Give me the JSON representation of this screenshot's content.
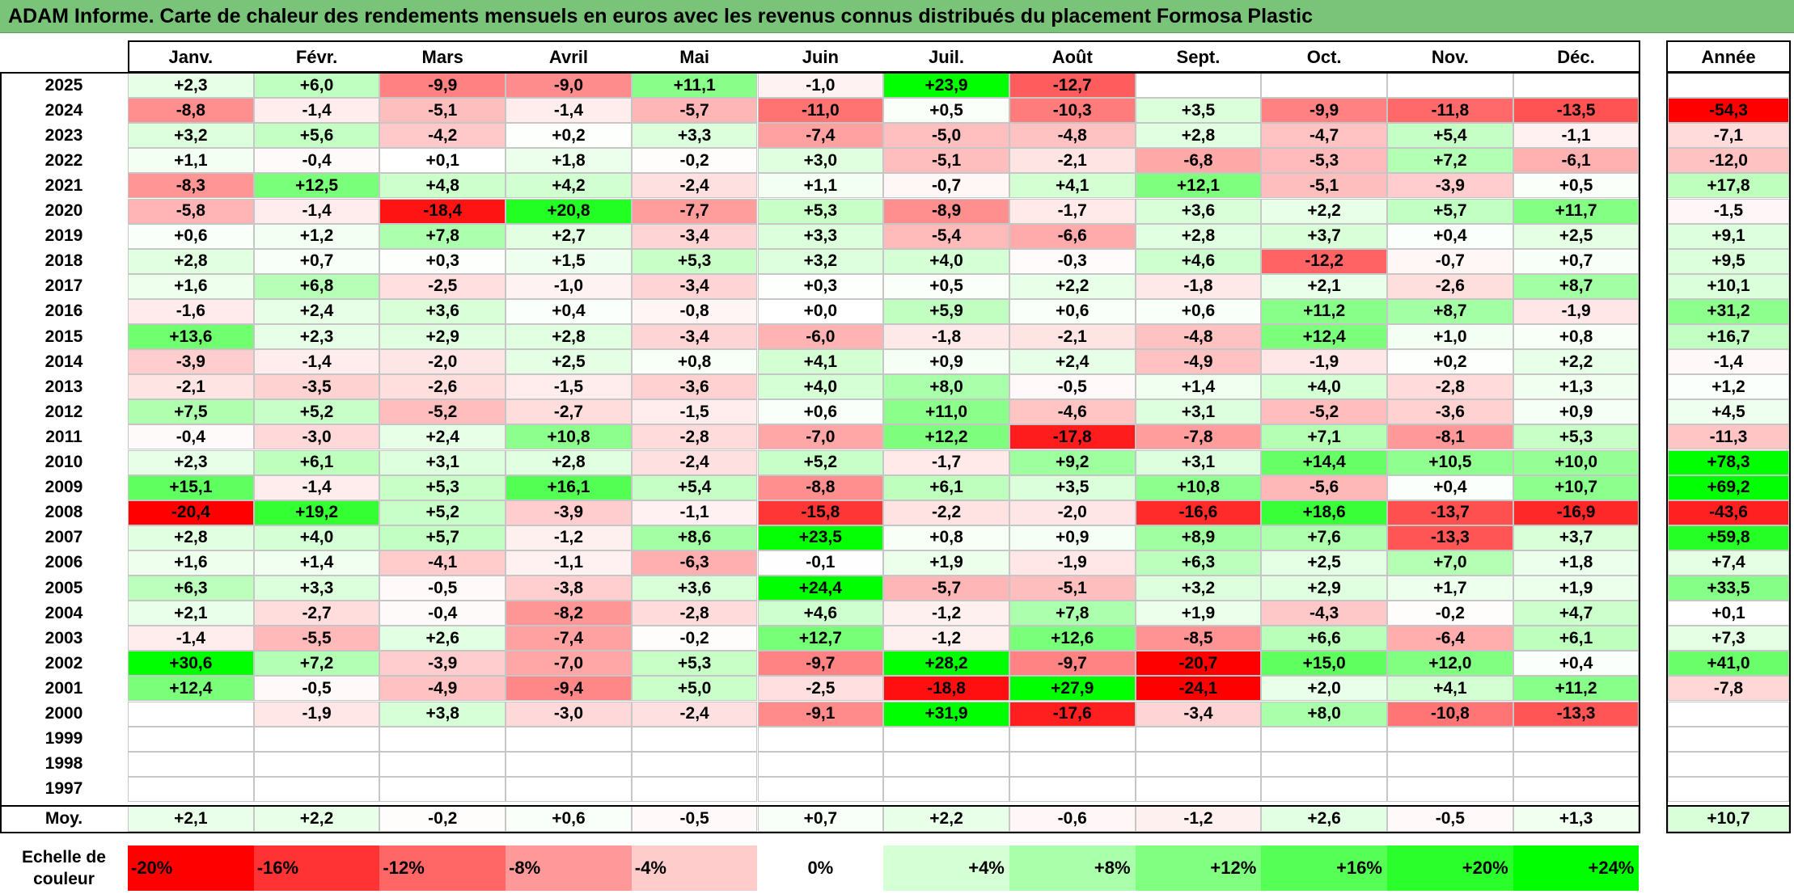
{
  "title": "ADAM Informe. Carte de chaleur des rendements mensuels en euros avec les revenus connus distribués du placement Formosa Plastic",
  "chart_data": {
    "type": "heatmap",
    "months": [
      "Janv.",
      "Févr.",
      "Mars",
      "Avril",
      "Mai",
      "Juin",
      "Juil.",
      "Août",
      "Sept.",
      "Oct.",
      "Nov.",
      "Déc."
    ],
    "annual_header": "Année",
    "rows": [
      {
        "year": "2025",
        "values": [
          "+2,3",
          "+6,0",
          "-9,9",
          "-9,0",
          "+11,1",
          "-1,0",
          "+23,9",
          "-12,7",
          "",
          "",
          "",
          ""
        ],
        "annual": ""
      },
      {
        "year": "2024",
        "values": [
          "-8,8",
          "-1,4",
          "-5,1",
          "-1,4",
          "-5,7",
          "-11,0",
          "+0,5",
          "-10,3",
          "+3,5",
          "-9,9",
          "-11,8",
          "-13,5"
        ],
        "annual": "-54,3"
      },
      {
        "year": "2023",
        "values": [
          "+3,2",
          "+5,6",
          "-4,2",
          "+0,2",
          "+3,3",
          "-7,4",
          "-5,0",
          "-4,8",
          "+2,8",
          "-4,7",
          "+5,4",
          "-1,1"
        ],
        "annual": "-7,1"
      },
      {
        "year": "2022",
        "values": [
          "+1,1",
          "-0,4",
          "+0,1",
          "+1,8",
          "-0,2",
          "+3,0",
          "-5,1",
          "-2,1",
          "-6,8",
          "-5,3",
          "+7,2",
          "-6,1"
        ],
        "annual": "-12,0"
      },
      {
        "year": "2021",
        "values": [
          "-8,3",
          "+12,5",
          "+4,8",
          "+4,2",
          "-2,4",
          "+1,1",
          "-0,7",
          "+4,1",
          "+12,1",
          "-5,1",
          "-3,9",
          "+0,5"
        ],
        "annual": "+17,8"
      },
      {
        "year": "2020",
        "values": [
          "-5,8",
          "-1,4",
          "-18,4",
          "+20,8",
          "-7,7",
          "+5,3",
          "-8,9",
          "-1,7",
          "+3,6",
          "+2,2",
          "+5,7",
          "+11,7"
        ],
        "annual": "-1,5"
      },
      {
        "year": "2019",
        "values": [
          "+0,6",
          "+1,2",
          "+7,8",
          "+2,7",
          "-3,4",
          "+3,3",
          "-5,4",
          "-6,6",
          "+2,8",
          "+3,7",
          "+0,4",
          "+2,5"
        ],
        "annual": "+9,1"
      },
      {
        "year": "2018",
        "values": [
          "+2,8",
          "+0,7",
          "+0,3",
          "+1,5",
          "+5,3",
          "+3,2",
          "+4,0",
          "-0,3",
          "+4,6",
          "-12,2",
          "-0,7",
          "+0,7"
        ],
        "annual": "+9,5"
      },
      {
        "year": "2017",
        "values": [
          "+1,6",
          "+6,8",
          "-2,5",
          "-1,0",
          "-3,4",
          "+0,3",
          "+0,5",
          "+2,2",
          "-1,8",
          "+2,1",
          "-2,6",
          "+8,7"
        ],
        "annual": "+10,1"
      },
      {
        "year": "2016",
        "values": [
          "-1,6",
          "+2,4",
          "+3,6",
          "+0,4",
          "-0,8",
          "+0,0",
          "+5,9",
          "+0,6",
          "+0,6",
          "+11,2",
          "+8,7",
          "-1,9"
        ],
        "annual": "+31,2"
      },
      {
        "year": "2015",
        "values": [
          "+13,6",
          "+2,3",
          "+2,9",
          "+2,8",
          "-3,4",
          "-6,0",
          "-1,8",
          "-2,1",
          "-4,8",
          "+12,4",
          "+1,0",
          "+0,8"
        ],
        "annual": "+16,7"
      },
      {
        "year": "2014",
        "values": [
          "-3,9",
          "-1,4",
          "-2,0",
          "+2,5",
          "+0,8",
          "+4,1",
          "+0,9",
          "+2,4",
          "-4,9",
          "-1,9",
          "+0,2",
          "+2,2"
        ],
        "annual": "-1,4"
      },
      {
        "year": "2013",
        "values": [
          "-2,1",
          "-3,5",
          "-2,6",
          "-1,5",
          "-3,6",
          "+4,0",
          "+8,0",
          "-0,5",
          "+1,4",
          "+4,0",
          "-2,8",
          "+1,3"
        ],
        "annual": "+1,2"
      },
      {
        "year": "2012",
        "values": [
          "+7,5",
          "+5,2",
          "-5,2",
          "-2,7",
          "-1,5",
          "+0,6",
          "+11,0",
          "-4,6",
          "+3,1",
          "-5,2",
          "-3,6",
          "+0,9"
        ],
        "annual": "+4,5"
      },
      {
        "year": "2011",
        "values": [
          "-0,4",
          "-3,0",
          "+2,4",
          "+10,8",
          "-2,8",
          "-7,0",
          "+12,2",
          "-17,8",
          "-7,8",
          "+7,1",
          "-8,1",
          "+5,3"
        ],
        "annual": "-11,3"
      },
      {
        "year": "2010",
        "values": [
          "+2,3",
          "+6,1",
          "+3,1",
          "+2,8",
          "-2,4",
          "+5,2",
          "-1,7",
          "+9,2",
          "+3,1",
          "+14,4",
          "+10,5",
          "+10,0"
        ],
        "annual": "+78,3"
      },
      {
        "year": "2009",
        "values": [
          "+15,1",
          "-1,4",
          "+5,3",
          "+16,1",
          "+5,4",
          "-8,8",
          "+6,1",
          "+3,5",
          "+10,8",
          "-5,6",
          "+0,4",
          "+10,7"
        ],
        "annual": "+69,2"
      },
      {
        "year": "2008",
        "values": [
          "-20,4",
          "+19,2",
          "+5,2",
          "-3,9",
          "-1,1",
          "-15,8",
          "-2,2",
          "-2,0",
          "-16,6",
          "+18,6",
          "-13,7",
          "-16,9"
        ],
        "annual": "-43,6"
      },
      {
        "year": "2007",
        "values": [
          "+2,8",
          "+4,0",
          "+5,7",
          "-1,2",
          "+8,6",
          "+23,5",
          "+0,8",
          "+0,9",
          "+8,9",
          "+7,6",
          "-13,3",
          "+3,7"
        ],
        "annual": "+59,8"
      },
      {
        "year": "2006",
        "values": [
          "+1,6",
          "+1,4",
          "-4,1",
          "-1,1",
          "-6,3",
          "-0,1",
          "+1,9",
          "-1,9",
          "+6,3",
          "+2,5",
          "+7,0",
          "+1,8"
        ],
        "annual": "+7,4"
      },
      {
        "year": "2005",
        "values": [
          "+6,3",
          "+3,3",
          "-0,5",
          "-3,8",
          "+3,6",
          "+24,4",
          "-5,7",
          "-5,1",
          "+3,2",
          "+2,9",
          "+1,7",
          "+1,9"
        ],
        "annual": "+33,5"
      },
      {
        "year": "2004",
        "values": [
          "+2,1",
          "-2,7",
          "-0,4",
          "-8,2",
          "-2,8",
          "+4,6",
          "-1,2",
          "+7,8",
          "+1,9",
          "-4,3",
          "-0,2",
          "+4,7"
        ],
        "annual": "+0,1"
      },
      {
        "year": "2003",
        "values": [
          "-1,4",
          "-5,5",
          "+2,6",
          "-7,4",
          "-0,2",
          "+12,7",
          "-1,2",
          "+12,6",
          "-8,5",
          "+6,6",
          "-6,4",
          "+6,1"
        ],
        "annual": "+7,3"
      },
      {
        "year": "2002",
        "values": [
          "+30,6",
          "+7,2",
          "-3,9",
          "-7,0",
          "+5,3",
          "-9,7",
          "+28,2",
          "-9,7",
          "-20,7",
          "+15,0",
          "+12,0",
          "+0,4"
        ],
        "annual": "+41,0"
      },
      {
        "year": "2001",
        "values": [
          "+12,4",
          "-0,5",
          "-4,9",
          "-9,4",
          "+5,0",
          "-2,5",
          "-18,8",
          "+27,9",
          "-24,1",
          "+2,0",
          "+4,1",
          "+11,2"
        ],
        "annual": "-7,8"
      },
      {
        "year": "2000",
        "values": [
          "",
          "-1,9",
          "+3,8",
          "-3,0",
          "-2,4",
          "-9,1",
          "+31,9",
          "-17,6",
          "-3,4",
          "+8,0",
          "-10,8",
          "-13,3"
        ],
        "annual": ""
      },
      {
        "year": "1999",
        "values": [
          "",
          "",
          "",
          "",
          "",
          "",
          "",
          "",
          "",
          "",
          "",
          ""
        ],
        "annual": ""
      },
      {
        "year": "1998",
        "values": [
          "",
          "",
          "",
          "",
          "",
          "",
          "",
          "",
          "",
          "",
          "",
          ""
        ],
        "annual": ""
      },
      {
        "year": "1997",
        "values": [
          "",
          "",
          "",
          "",
          "",
          "",
          "",
          "",
          "",
          "",
          "",
          ""
        ],
        "annual": ""
      }
    ],
    "average": {
      "label": "Moy.",
      "values": [
        "+2,1",
        "+2,2",
        "-0,2",
        "+0,6",
        "-0,5",
        "+0,7",
        "+2,2",
        "-0,6",
        "-1,2",
        "+2,6",
        "-0,5",
        "+1,3"
      ],
      "annual": "+10,7"
    },
    "color_scale": {
      "label": "Echelle de couleur",
      "steps": [
        {
          "label": "-20%",
          "value": -20
        },
        {
          "label": "-16%",
          "value": -16
        },
        {
          "label": "-12%",
          "value": -12
        },
        {
          "label": "-8%",
          "value": -8
        },
        {
          "label": "-4%",
          "value": -4
        },
        {
          "label": "0%",
          "value": 0
        },
        {
          "label": "+4%",
          "value": 4
        },
        {
          "label": "+8%",
          "value": 8
        },
        {
          "label": "+12%",
          "value": 12
        },
        {
          "label": "+16%",
          "value": 16
        },
        {
          "label": "+20%",
          "value": 20
        },
        {
          "label": "+24%",
          "value": 24
        }
      ]
    },
    "colors": {
      "negative": "#ff0000",
      "neutral": "#ffffff",
      "positive": "#00ff00",
      "title_bar": "#7ac47a"
    }
  }
}
